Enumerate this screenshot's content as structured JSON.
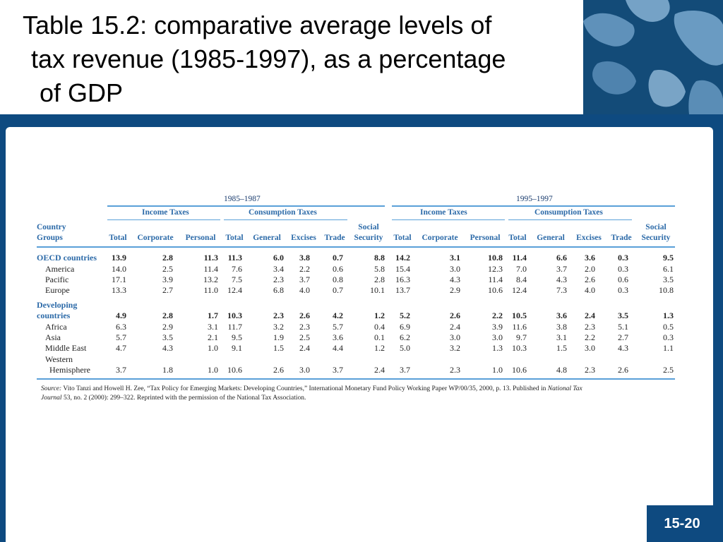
{
  "title": {
    "line1": "Table 15.2: comparative average levels of",
    "line2": "tax revenue (1985-1997), as a percentage",
    "line3": "of GDP"
  },
  "page_number": "15-20",
  "table": {
    "periods": [
      "1985–1987",
      "1995–1997"
    ],
    "groups": [
      "Income Taxes",
      "Consumption Taxes"
    ],
    "first_col_header": [
      "Country",
      "Groups"
    ],
    "columns": [
      "Total",
      "Corporate",
      "Personal",
      "Total",
      "General",
      "Excises",
      "Trade",
      "Social Security",
      "Total",
      "Corporate",
      "Personal",
      "Total",
      "General",
      "Excises",
      "Trade",
      "Social Security"
    ],
    "social_security_lines": [
      "Social",
      "Security"
    ],
    "rows": [
      {
        "label": "OECD countries",
        "highlight": true,
        "bold": true,
        "values": [
          "13.9",
          "2.8",
          "11.3",
          "11.3",
          "6.0",
          "3.8",
          "0.7",
          "8.8",
          "14.2",
          "3.1",
          "10.8",
          "11.4",
          "6.6",
          "3.6",
          "0.3",
          "9.5"
        ]
      },
      {
        "label": "America",
        "values": [
          "14.0",
          "2.5",
          "11.4",
          "7.6",
          "3.4",
          "2.2",
          "0.6",
          "5.8",
          "15.4",
          "3.0",
          "12.3",
          "7.0",
          "3.7",
          "2.0",
          "0.3",
          "6.1"
        ]
      },
      {
        "label": "Pacific",
        "values": [
          "17.1",
          "3.9",
          "13.2",
          "7.5",
          "2.3",
          "3.7",
          "0.8",
          "2.8",
          "16.3",
          "4.3",
          "11.4",
          "8.4",
          "4.3",
          "2.6",
          "0.6",
          "3.5"
        ]
      },
      {
        "label": "Europe",
        "values": [
          "13.3",
          "2.7",
          "11.0",
          "12.4",
          "6.8",
          "4.0",
          "0.7",
          "10.1",
          "13.7",
          "2.9",
          "10.6",
          "12.4",
          "7.3",
          "4.0",
          "0.3",
          "10.8"
        ]
      },
      {
        "label": "Developing countries",
        "label_lines": [
          "Developing",
          "countries"
        ],
        "highlight": true,
        "bold": true,
        "values": [
          "4.9",
          "2.8",
          "1.7",
          "10.3",
          "2.3",
          "2.6",
          "4.2",
          "1.2",
          "5.2",
          "2.6",
          "2.2",
          "10.5",
          "3.6",
          "2.4",
          "3.5",
          "1.3"
        ]
      },
      {
        "label": "Africa",
        "values": [
          "6.3",
          "2.9",
          "3.1",
          "11.7",
          "3.2",
          "2.3",
          "5.7",
          "0.4",
          "6.9",
          "2.4",
          "3.9",
          "11.6",
          "3.8",
          "2.3",
          "5.1",
          "0.5"
        ]
      },
      {
        "label": "Asia",
        "values": [
          "5.7",
          "3.5",
          "2.1",
          "9.5",
          "1.9",
          "2.5",
          "3.6",
          "0.1",
          "6.2",
          "3.0",
          "3.0",
          "9.7",
          "3.1",
          "2.2",
          "2.7",
          "0.3"
        ]
      },
      {
        "label": "Middle East",
        "values": [
          "4.7",
          "4.3",
          "1.0",
          "9.1",
          "1.5",
          "2.4",
          "4.4",
          "1.2",
          "5.0",
          "3.2",
          "1.3",
          "10.3",
          "1.5",
          "3.0",
          "4.3",
          "1.1"
        ]
      },
      {
        "label": "Western Hemisphere",
        "label_lines": [
          "Western",
          "Hemisphere"
        ],
        "values": [
          "3.7",
          "1.8",
          "1.0",
          "10.6",
          "2.6",
          "3.0",
          "3.7",
          "2.4",
          "3.7",
          "2.3",
          "1.0",
          "10.6",
          "4.8",
          "2.3",
          "2.6",
          "2.5"
        ]
      }
    ]
  },
  "source": {
    "label": "Source:",
    "text1": "Vito Tanzi and Howell H. Zee, “Tax Policy for Emerging Markets: Developing Countries,” International Monetary Fund Policy Working Paper WP/00/35, 2000, p. 13. Published in ",
    "journal1": "National Tax",
    "journal2": "Journal",
    "text2": " 53, no. 2 (2000): 299–322. Reprinted with the permission of the National Tax Association."
  },
  "colors": {
    "band": "#0e4a80",
    "accent": "#2c6aa8",
    "rule": "#5aa0d8"
  }
}
